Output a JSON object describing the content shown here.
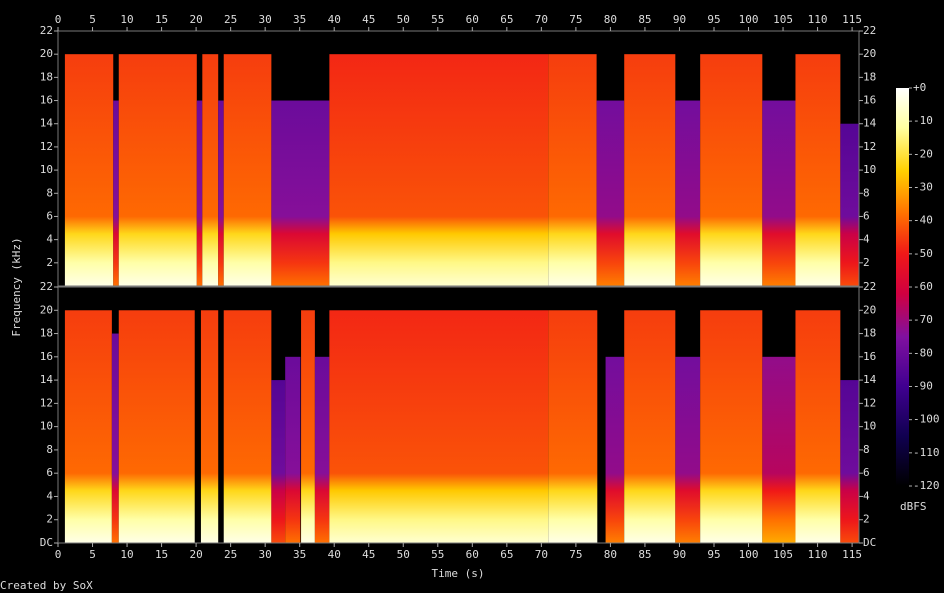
{
  "chart_data": {
    "type": "spectrogram",
    "xlabel": "Time (s)",
    "ylabel": "Frequency (kHz)",
    "footer": "Created by SoX",
    "xlim": [
      0,
      116
    ],
    "xticks": [
      0,
      5,
      10,
      15,
      20,
      25,
      30,
      35,
      40,
      45,
      50,
      55,
      60,
      65,
      70,
      75,
      80,
      85,
      90,
      95,
      100,
      105,
      110,
      115
    ],
    "colorbar": {
      "label": "dBFS",
      "lim": [
        -120,
        0
      ],
      "ticks": [
        {
          "value": 0,
          "label": "+0"
        },
        -10,
        -20,
        -30,
        -40,
        -50,
        -60,
        -70,
        -80,
        -90,
        -100,
        -110,
        -120
      ]
    },
    "colormap": [
      [
        0,
        "#ffffff"
      ],
      [
        -12,
        "#ffffa0"
      ],
      [
        -25,
        "#ffd000"
      ],
      [
        -38,
        "#ff7000"
      ],
      [
        -50,
        "#f01818"
      ],
      [
        -62,
        "#d00040"
      ],
      [
        -75,
        "#8010a0"
      ],
      [
        -90,
        "#400090"
      ],
      [
        -105,
        "#100050"
      ],
      [
        -120,
        "#000000"
      ]
    ],
    "channels": [
      {
        "ylim": [
          0,
          22
        ],
        "yticks": [
          2,
          4,
          6,
          8,
          10,
          12,
          14,
          16,
          18,
          20,
          22
        ],
        "segments": [
          {
            "start": 1,
            "end": 8,
            "top": 20,
            "level": -45
          },
          {
            "start": 8,
            "end": 8.8,
            "top": 16,
            "level": -80
          },
          {
            "start": 8.8,
            "end": 20.1,
            "top": 20,
            "level": -45
          },
          {
            "start": 20.1,
            "end": 20.9,
            "top": 16,
            "level": -80
          },
          {
            "start": 20.9,
            "end": 23.2,
            "top": 20,
            "level": -45
          },
          {
            "start": 23.2,
            "end": 24,
            "top": 16,
            "level": -80
          },
          {
            "start": 24,
            "end": 30.9,
            "top": 20,
            "level": -45
          },
          {
            "start": 30.9,
            "end": 39.3,
            "top": 16,
            "level": -80
          },
          {
            "start": 39.3,
            "end": 71,
            "top": 20,
            "level": -48
          },
          {
            "start": 71,
            "end": 78,
            "top": 20,
            "level": -45
          },
          {
            "start": 78,
            "end": 82,
            "top": 16,
            "level": -78
          },
          {
            "start": 82,
            "end": 89.4,
            "top": 20,
            "level": -45
          },
          {
            "start": 89.4,
            "end": 93,
            "top": 16,
            "level": -78
          },
          {
            "start": 93,
            "end": 102,
            "top": 20,
            "level": -45
          },
          {
            "start": 102,
            "end": 106.8,
            "top": 16,
            "level": -78
          },
          {
            "start": 106.8,
            "end": 113.3,
            "top": 20,
            "level": -45
          },
          {
            "start": 113.3,
            "end": 116,
            "top": 14,
            "level": -85
          }
        ]
      },
      {
        "ylim": [
          0,
          22
        ],
        "yticks": [
          {
            "value": 0,
            "label": "DC"
          },
          2,
          4,
          6,
          8,
          10,
          12,
          14,
          16,
          18,
          20,
          22
        ],
        "segments": [
          {
            "start": 1,
            "end": 7.8,
            "top": 20,
            "level": -45
          },
          {
            "start": 7.8,
            "end": 8.8,
            "top": 18,
            "level": -80
          },
          {
            "start": 8.8,
            "end": 19.8,
            "top": 20,
            "level": -45
          },
          {
            "start": 20.7,
            "end": 23.2,
            "top": 20,
            "level": -45
          },
          {
            "start": 24,
            "end": 30.9,
            "top": 20,
            "level": -45
          },
          {
            "start": 30.9,
            "end": 32.9,
            "top": 14,
            "level": -85
          },
          {
            "start": 32.9,
            "end": 35.1,
            "top": 16,
            "level": -80
          },
          {
            "start": 35.2,
            "end": 37.2,
            "top": 20,
            "level": -45
          },
          {
            "start": 37.2,
            "end": 39.3,
            "top": 16,
            "level": -80
          },
          {
            "start": 39.3,
            "end": 71,
            "top": 20,
            "level": -48
          },
          {
            "start": 71,
            "end": 78.1,
            "top": 20,
            "level": -45
          },
          {
            "start": 79.3,
            "end": 82,
            "top": 16,
            "level": -78
          },
          {
            "start": 82,
            "end": 89.4,
            "top": 20,
            "level": -45
          },
          {
            "start": 89.4,
            "end": 93,
            "top": 16,
            "level": -78
          },
          {
            "start": 93,
            "end": 102,
            "top": 20,
            "level": -45
          },
          {
            "start": 102,
            "end": 106.8,
            "top": 16,
            "level": -72
          },
          {
            "start": 106.8,
            "end": 113.3,
            "top": 20,
            "level": -45
          },
          {
            "start": 113.3,
            "end": 116,
            "top": 14,
            "level": -85
          }
        ]
      }
    ]
  }
}
